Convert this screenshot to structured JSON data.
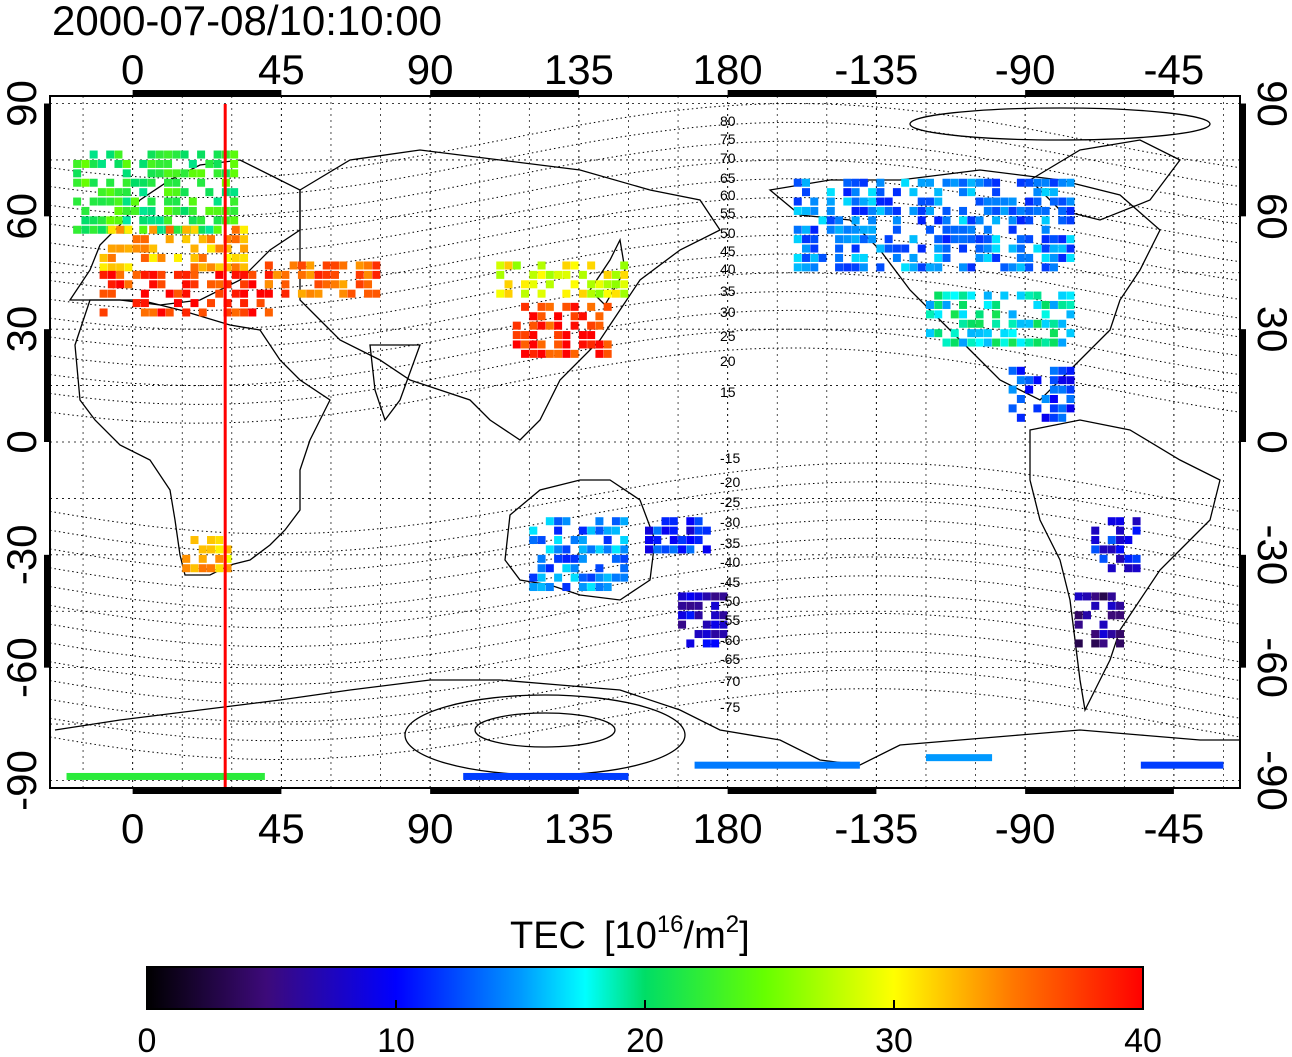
{
  "title": "2000-07-08/10:10:00",
  "colorbar": {
    "title_main": "TEC",
    "title_unit_open": "[10",
    "title_unit_exp": "16",
    "title_unit_mid": "/m",
    "title_unit_exp2": "2",
    "title_unit_close": "]",
    "min": 0,
    "max": 40,
    "tick_labels": [
      "0",
      "10",
      "20",
      "30",
      "40"
    ]
  },
  "axes": {
    "x_labels": [
      "0",
      "45",
      "90",
      "135",
      "180",
      "-135",
      "-90",
      "-45"
    ],
    "y_labels": [
      "90",
      "60",
      "30",
      "0",
      "-30",
      "-60",
      "-90"
    ],
    "x_range": [
      -25,
      335
    ],
    "y_range": [
      -92,
      92
    ]
  },
  "contours": {
    "labels": [
      "80",
      "75",
      "70",
      "65",
      "60",
      "55",
      "50",
      "45",
      "40",
      "35",
      "30",
      "25",
      "20",
      "15",
      "-15",
      "-20",
      "-25",
      "-30",
      "-35",
      "-40",
      "-45",
      "-50",
      "-55",
      "-60",
      "-65",
      "-70",
      "-75"
    ]
  },
  "marker_longitude": 28,
  "colors": {
    "marker": "#ff0000",
    "frame": "#000000"
  },
  "tec_regions": [
    {
      "lon": [
        -18,
        30
      ],
      "lat": [
        55,
        76
      ],
      "tec": 22
    },
    {
      "lon": [
        -10,
        35
      ],
      "lat": [
        45,
        56
      ],
      "tec": 33
    },
    {
      "lon": [
        -10,
        42
      ],
      "lat": [
        33,
        44
      ],
      "tec": 38
    },
    {
      "lon": [
        40,
        75
      ],
      "lat": [
        38,
        46
      ],
      "tec": 36
    },
    {
      "lon": [
        110,
        150
      ],
      "lat": [
        38,
        48
      ],
      "tec": 29
    },
    {
      "lon": [
        115,
        145
      ],
      "lat": [
        22,
        36
      ],
      "tec": 38
    },
    {
      "lon": [
        200,
        285
      ],
      "lat": [
        45,
        70
      ],
      "tec": 14
    },
    {
      "lon": [
        240,
        285
      ],
      "lat": [
        25,
        40
      ],
      "tec": 18
    },
    {
      "lon": [
        265,
        285
      ],
      "lat": [
        5,
        20
      ],
      "tec": 12
    },
    {
      "lon": [
        290,
        305
      ],
      "lat": [
        -20,
        -35
      ],
      "tec": 10
    },
    {
      "lon": [
        285,
        300
      ],
      "lat": [
        -40,
        -55
      ],
      "tec": 6
    },
    {
      "lon": [
        15,
        30
      ],
      "lat": [
        -25,
        -35
      ],
      "tec": 32
    },
    {
      "lon": [
        120,
        150
      ],
      "lat": [
        -20,
        -40
      ],
      "tec": 14
    },
    {
      "lon": [
        165,
        180
      ],
      "lat": [
        -40,
        -55
      ],
      "tec": 8
    },
    {
      "lon": [
        155,
        175
      ],
      "lat": [
        -20,
        -30
      ],
      "tec": 11
    }
  ]
}
